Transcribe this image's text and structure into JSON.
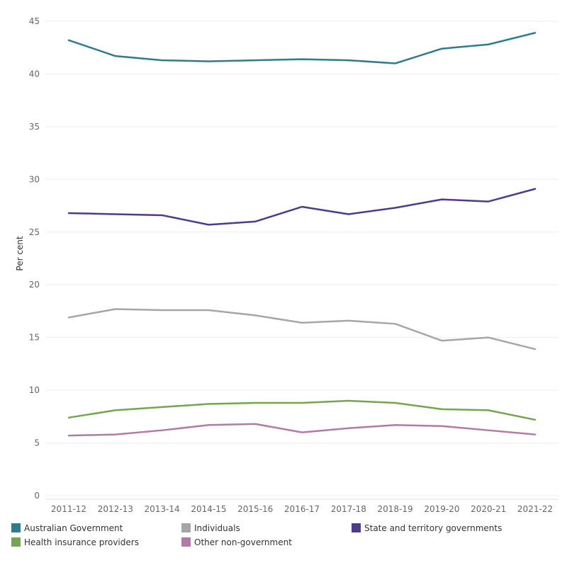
{
  "chart_data": {
    "type": "line",
    "title": "",
    "xlabel": "",
    "ylabel": "Per cent",
    "ylim": [
      0,
      45
    ],
    "yticks": [
      0,
      5,
      10,
      15,
      20,
      25,
      30,
      35,
      40,
      45
    ],
    "grid": true,
    "legend_position": "bottom",
    "categories": [
      "2011-12",
      "2012-13",
      "2013-14",
      "2014-15",
      "2015-16",
      "2016-17",
      "2017-18",
      "2018-19",
      "2019-20",
      "2020-21",
      "2021-22"
    ],
    "series": [
      {
        "name": "Australian Government",
        "color": "#2e7d8f",
        "values": [
          43.2,
          41.7,
          41.3,
          41.2,
          41.3,
          41.4,
          41.3,
          41.0,
          42.4,
          42.8,
          43.9
        ]
      },
      {
        "name": "Individuals",
        "color": "#a3a7a6",
        "values": [
          16.9,
          17.7,
          17.6,
          17.6,
          17.1,
          16.4,
          16.6,
          16.3,
          14.7,
          15.0,
          13.9
        ]
      },
      {
        "name": "State and territory governments",
        "color": "#4e3a8f",
        "values": [
          26.8,
          26.7,
          26.6,
          25.7,
          26.0,
          27.4,
          26.7,
          27.3,
          28.1,
          27.9,
          29.1
        ]
      },
      {
        "name": "Health insurance providers",
        "color": "#74a54f",
        "values": [
          7.4,
          8.1,
          8.4,
          8.7,
          8.8,
          8.8,
          9.0,
          8.8,
          8.2,
          8.1,
          7.2
        ]
      },
      {
        "name": "Other non-government",
        "color": "#b47aa6",
        "values": [
          5.7,
          5.8,
          6.2,
          6.7,
          6.8,
          6.0,
          6.4,
          6.7,
          6.6,
          6.2,
          5.8
        ]
      }
    ]
  }
}
